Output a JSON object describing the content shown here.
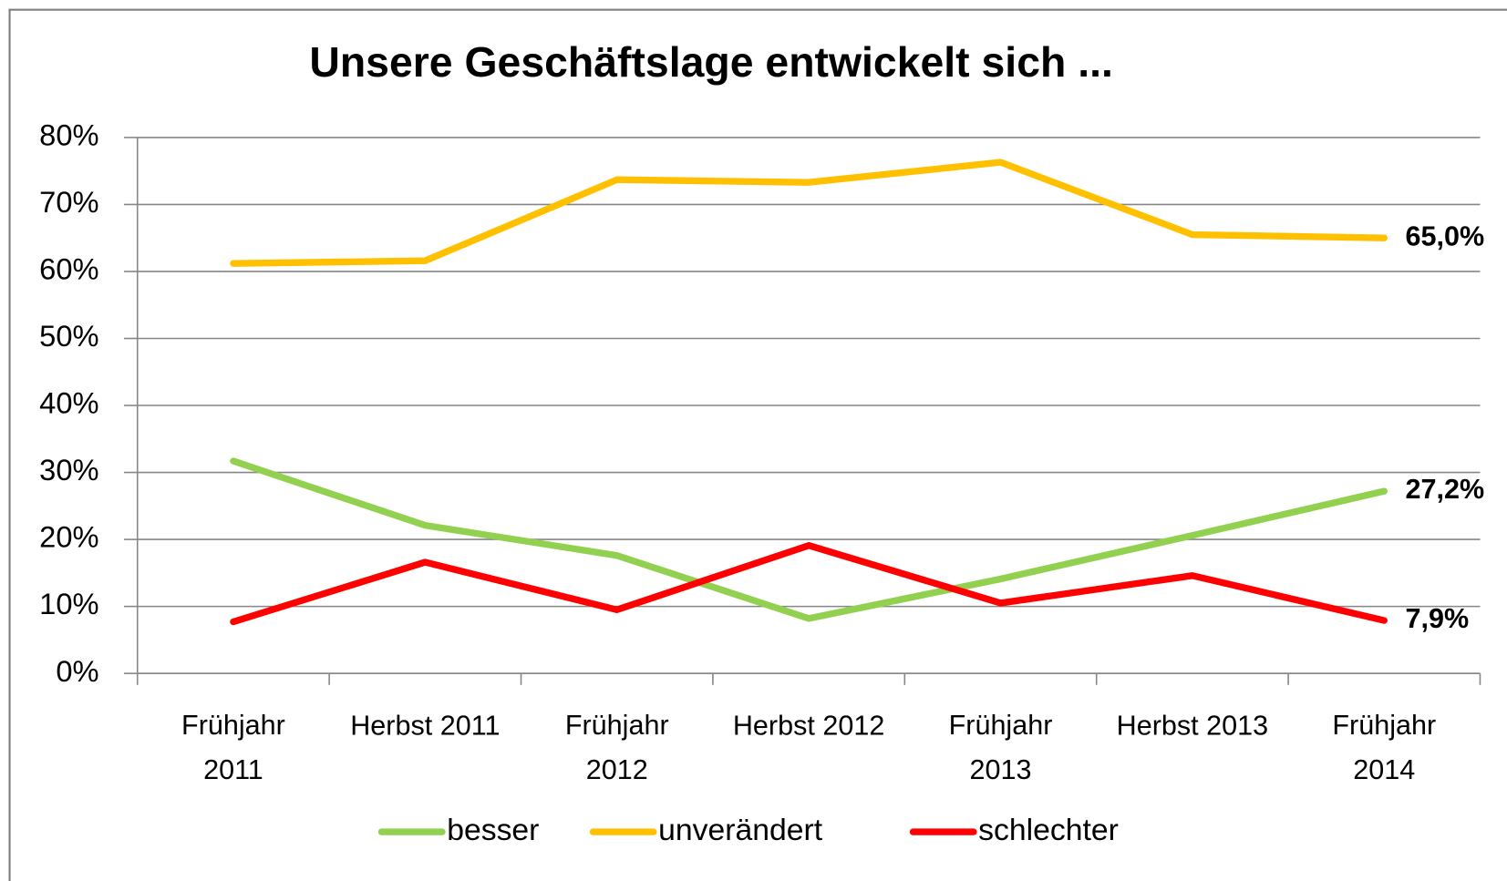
{
  "chart_data": {
    "type": "line",
    "title": "Unsere Geschäftslage entwickelt sich ...",
    "categories": [
      "Frühjahr\n2011",
      "Herbst 2011",
      "Frühjahr\n2012",
      "Herbst 2012",
      "Frühjahr\n2013",
      "Herbst 2013",
      "Frühjahr\n2014"
    ],
    "series": [
      {
        "name": "besser",
        "color": "#92d050",
        "values": [
          31.7,
          22.1,
          17.6,
          8.2,
          14.1,
          20.6,
          27.2
        ],
        "value_labels": [
          null,
          null,
          null,
          null,
          null,
          null,
          "27,2%"
        ]
      },
      {
        "name": "unverändert",
        "color": "#ffc000",
        "values": [
          61.2,
          61.6,
          73.7,
          73.3,
          76.3,
          65.5,
          65.0
        ],
        "value_labels": [
          null,
          null,
          null,
          null,
          null,
          null,
          "65,0%"
        ]
      },
      {
        "name": "schlechter",
        "color": "#ff0000",
        "values": [
          7.7,
          16.6,
          9.5,
          19.1,
          10.5,
          14.6,
          7.9
        ],
        "value_labels": [
          null,
          null,
          null,
          null,
          null,
          null,
          "7,9%"
        ]
      }
    ],
    "ylim": [
      0,
      80
    ],
    "yticks": [
      {
        "value": 0,
        "label": "0%"
      },
      {
        "value": 10,
        "label": "10%"
      },
      {
        "value": 20,
        "label": "20%"
      },
      {
        "value": 30,
        "label": "30%"
      },
      {
        "value": 40,
        "label": "40%"
      },
      {
        "value": 50,
        "label": "50%"
      },
      {
        "value": 60,
        "label": "60%"
      },
      {
        "value": 70,
        "label": "70%"
      },
      {
        "value": 80,
        "label": "80%"
      }
    ],
    "grid": true,
    "legend": "bottom"
  }
}
